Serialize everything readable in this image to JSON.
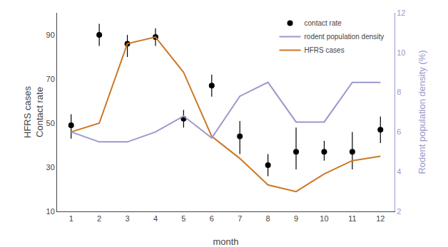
{
  "chart_data": {
    "type": "line",
    "x": [
      1,
      2,
      3,
      4,
      5,
      6,
      7,
      8,
      9,
      10,
      11,
      12
    ],
    "xlabel": "month",
    "ylabel": "HFRS cases\nContact rate",
    "y2label": "Rodent population density (%)",
    "xlim": [
      0.5,
      12.5
    ],
    "xticks": [
      1,
      2,
      3,
      4,
      5,
      6,
      7,
      8,
      9,
      10,
      11,
      12
    ],
    "ylim": [
      10,
      100
    ],
    "yticks": [
      10,
      30,
      50,
      70,
      90
    ],
    "y2lim": [
      2,
      12
    ],
    "y2ticks": [
      2,
      4,
      6,
      8,
      10,
      12
    ],
    "grid": false,
    "legend": "upper right",
    "series": [
      {
        "name": "contact rate",
        "type": "scatter",
        "marker": "circle",
        "color": "#000000",
        "values": [
          49,
          90,
          86,
          89,
          52,
          67,
          44,
          31,
          37,
          37,
          37,
          47
        ],
        "err_lo": [
          6,
          5,
          6,
          4,
          4,
          5,
          8,
          5,
          8,
          4,
          8,
          6
        ],
        "err_hi": [
          5,
          5,
          4,
          4,
          4,
          5,
          7,
          5,
          11,
          5,
          9,
          6
        ]
      },
      {
        "name": "rodent population density",
        "type": "line",
        "line_style": "solid",
        "color": "#9999cc",
        "axis": "y2",
        "values": [
          6.0,
          5.5,
          5.5,
          6.0,
          6.8,
          5.7,
          7.8,
          8.5,
          6.5,
          6.5,
          8.5,
          8.5
        ]
      },
      {
        "name": "HFRS cases",
        "type": "line",
        "line_style": "solid",
        "color": "#cc7722",
        "values": [
          46,
          50,
          86,
          89,
          73,
          44,
          34,
          22,
          19,
          27,
          33,
          35
        ]
      }
    ]
  }
}
